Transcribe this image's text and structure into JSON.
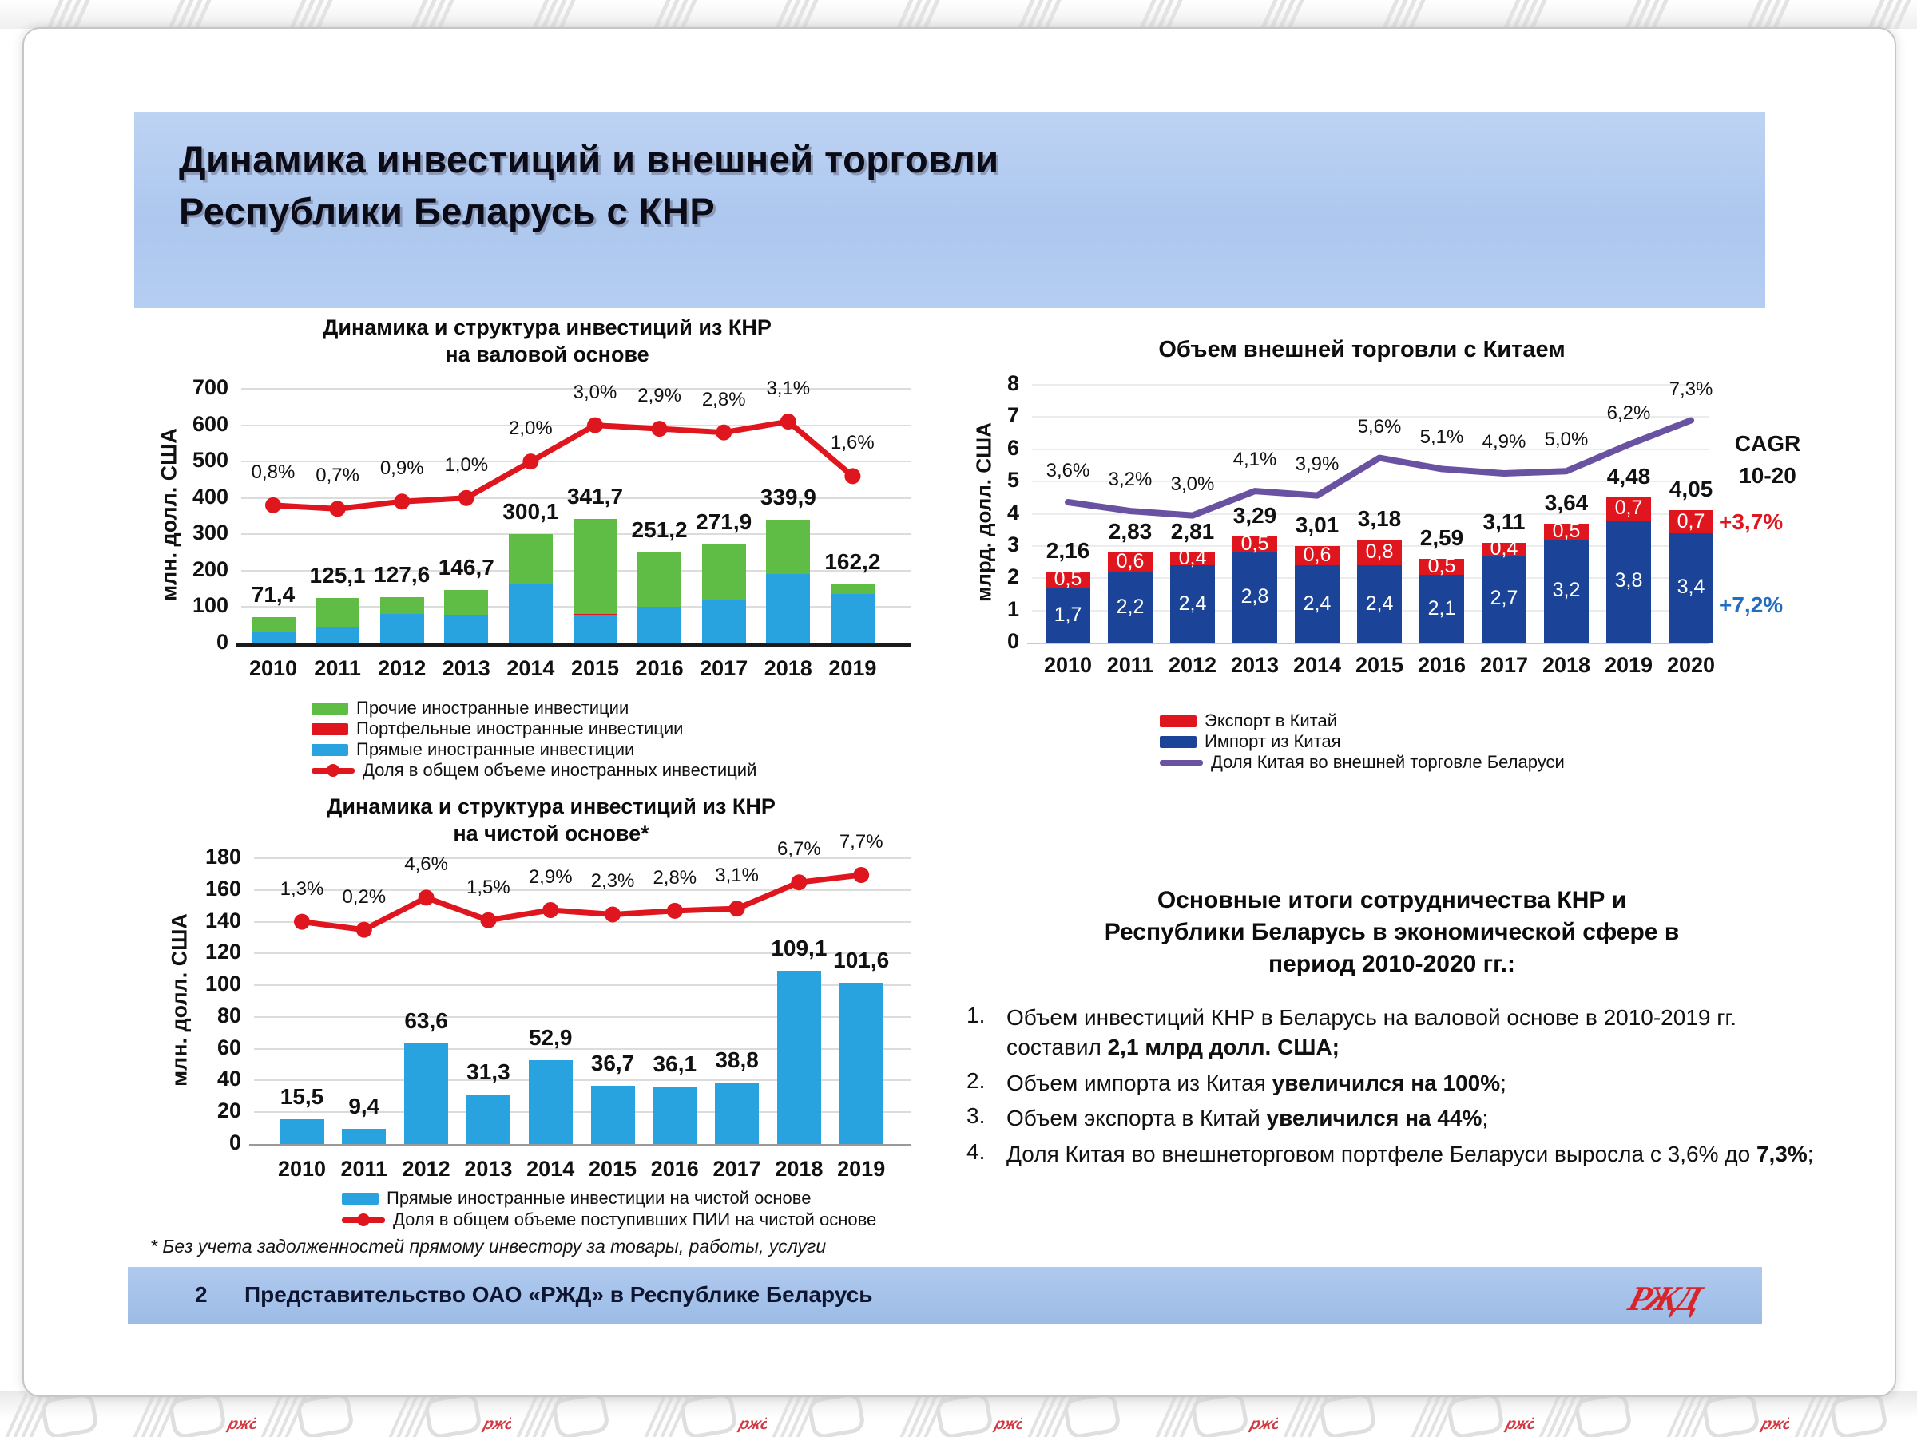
{
  "slide": {
    "title_lines": [
      "Динамика инвестиций и внешней торговли",
      "Республики Беларусь с КНР"
    ]
  },
  "colors": {
    "sky": "#29a3e0",
    "green": "#5fbd46",
    "red": "#e0161f",
    "navy": "#1b4499",
    "purple": "#6a52a3",
    "blue_text": "#1f6ec2",
    "band": "#aec8ef",
    "dark": "#0e1530"
  },
  "chart_data": [
    {
      "id": "invest_gross",
      "type": "stacked-bar-line",
      "title_lines": [
        "Динамика и структура инвестиций из КНР",
        "на валовой основе"
      ],
      "ylabel": "млн. долл. США",
      "ylim": [
        0,
        700
      ],
      "ytick_step": 100,
      "grid": true,
      "categories": [
        "2010",
        "2011",
        "2012",
        "2013",
        "2014",
        "2015",
        "2016",
        "2017",
        "2018",
        "2019"
      ],
      "total_labels": [
        "71,4",
        "125,1",
        "127,6",
        "146,7",
        "300,1",
        "341,7",
        "251,2",
        "271,9",
        "339,9",
        "162,2"
      ],
      "series": [
        {
          "name": "Прямые иностранные инвестиции",
          "color": "sky",
          "values": [
            30,
            45,
            82,
            80,
            165,
            80,
            100,
            120,
            190,
            137
          ]
        },
        {
          "name": "Портфельные иностранные инвестиции",
          "color": "red",
          "values": [
            0,
            0,
            0,
            0,
            0,
            2,
            0,
            0,
            0,
            0
          ]
        },
        {
          "name": "Прочие иностранные инвестиции",
          "color": "green",
          "values": [
            41.4,
            80.1,
            45.6,
            66.7,
            135.1,
            259.7,
            151.2,
            151.9,
            149.9,
            25.2
          ]
        }
      ],
      "line": {
        "name": "Доля в общем объеме иностранных инвестиций",
        "unit": "%",
        "values": [
          0.8,
          0.7,
          0.9,
          1.0,
          2.0,
          3.0,
          2.9,
          2.8,
          3.1,
          1.6
        ],
        "labels": [
          "0,8%",
          "0,7%",
          "0,9%",
          "1,0%",
          "2,0%",
          "3,0%",
          "2,9%",
          "2,8%",
          "3,1%",
          "1,6%"
        ]
      },
      "legend": [
        {
          "swatch": "rect",
          "color": "green",
          "label": "Прочие иностранные инвестиции"
        },
        {
          "swatch": "rect",
          "color": "red",
          "label": "Портфельные иностранные инвестиции"
        },
        {
          "swatch": "rect",
          "color": "sky",
          "label": "Прямые иностранные инвестиции"
        },
        {
          "swatch": "line-dot",
          "color": "red",
          "label": "Доля в общем объеме иностранных инвестиций"
        }
      ]
    },
    {
      "id": "invest_net",
      "type": "bar-line",
      "title_lines": [
        "Динамика и структура инвестиций из КНР",
        "на чистой основе*"
      ],
      "ylabel": "млн. долл. США",
      "ylim": [
        0,
        180
      ],
      "ytick_step": 20,
      "grid": true,
      "categories": [
        "2010",
        "2011",
        "2012",
        "2013",
        "2014",
        "2015",
        "2016",
        "2017",
        "2018",
        "2019"
      ],
      "total_labels": [
        "15,5",
        "9,4",
        "63,6",
        "31,3",
        "52,9",
        "36,7",
        "36,1",
        "38,8",
        "109,1",
        "101,6"
      ],
      "series": [
        {
          "name": "Прямые иностранные инвестиции на чистой основе",
          "color": "sky",
          "values": [
            15.5,
            9.4,
            63.6,
            31.3,
            52.9,
            36.7,
            36.1,
            38.8,
            109.1,
            101.6
          ]
        }
      ],
      "line": {
        "name": "Доля в общем объеме поступивших ПИИ на чистой основе",
        "unit": "%",
        "values": [
          1.3,
          0.2,
          4.6,
          1.5,
          2.9,
          2.3,
          2.8,
          3.1,
          6.7,
          7.7
        ],
        "labels": [
          "1,3%",
          "0,2%",
          "4,6%",
          "1,5%",
          "2,9%",
          "2,3%",
          "2,8%",
          "3,1%",
          "6,7%",
          "7,7%"
        ]
      },
      "legend": [
        {
          "swatch": "rect",
          "color": "sky",
          "label": "Прямые иностранные инвестиции на чистой основе"
        },
        {
          "swatch": "line-dot",
          "color": "red",
          "label": "Доля в общем объеме поступивших ПИИ на чистой основе"
        }
      ],
      "footnote": "* Без учета задолженностей прямому инвестору за товары, работы, услуги"
    },
    {
      "id": "trade",
      "type": "stacked-bar-line",
      "title": "Объем внешней торговли с Китаем",
      "ylabel": "млрд. долл. США",
      "ylim": [
        0,
        8
      ],
      "ytick_step": 1,
      "grid": false,
      "categories": [
        "2010",
        "2011",
        "2012",
        "2013",
        "2014",
        "2015",
        "2016",
        "2017",
        "2018",
        "2019",
        "2020"
      ],
      "total_labels": [
        "2,16",
        "2,83",
        "2,81",
        "3,29",
        "3,01",
        "3,18",
        "2,59",
        "3,11",
        "3,64",
        "4,48",
        "4,05"
      ],
      "series": [
        {
          "name": "Импорт из Китая",
          "color": "navy",
          "values": [
            1.7,
            2.2,
            2.4,
            2.8,
            2.4,
            2.4,
            2.1,
            2.7,
            3.2,
            3.8,
            3.4
          ],
          "value_labels": [
            "1,7",
            "2,2",
            "2,4",
            "2,8",
            "2,4",
            "2,4",
            "2,1",
            "2,7",
            "3,2",
            "3,8",
            "3,4"
          ]
        },
        {
          "name": "Экспорт в Китай",
          "color": "red",
          "values": [
            0.5,
            0.6,
            0.4,
            0.5,
            0.6,
            0.8,
            0.5,
            0.4,
            0.5,
            0.7,
            0.7
          ],
          "value_labels": [
            "0,5",
            "0,6",
            "0,4",
            "0,5",
            "0,6",
            "0,8",
            "0,5",
            "0,4",
            "0,5",
            "0,7",
            "0,7"
          ]
        }
      ],
      "line": {
        "name": "Доля Китая во внешней торговле Беларуси",
        "unit": "%",
        "values": [
          3.6,
          3.2,
          3.0,
          4.1,
          3.9,
          5.6,
          5.1,
          4.9,
          5.0,
          6.2,
          7.3
        ],
        "labels": [
          "3,6%",
          "3,2%",
          "3,0%",
          "4,1%",
          "3,9%",
          "5,6%",
          "5,1%",
          "4,9%",
          "5,0%",
          "6,2%",
          "7,3%"
        ]
      },
      "cagr": {
        "title": "CAGR",
        "period": "10-20",
        "export_label": "+3,7%",
        "import_label": "+7,2%"
      },
      "legend": [
        {
          "swatch": "rect",
          "color": "red",
          "label": "Экспорт в Китай"
        },
        {
          "swatch": "rect",
          "color": "navy",
          "label": "Импорт из Китая"
        },
        {
          "swatch": "line",
          "color": "purple",
          "label": "Доля Китая во внешней торговле Беларуси"
        }
      ]
    }
  ],
  "summary": {
    "heading_lines": [
      "Основные итоги сотрудничества КНР и",
      "Республики Беларусь в экономической сфере в",
      "период 2010-2020 гг.:"
    ],
    "items": [
      {
        "num": "1.",
        "pre": "Объем инвестиций КНР в Беларусь на валовой основе в 2010-2019 гг. составил  ",
        "bold": "2,1 млрд долл. США;",
        "post": ""
      },
      {
        "num": "2.",
        "pre": "Объем импорта из Китая ",
        "bold": "увеличился на 100%",
        "post": ";"
      },
      {
        "num": "3.",
        "pre": "Объем экспорта в Китай ",
        "bold": "увеличился на 44%",
        "post": ";"
      },
      {
        "num": "4.",
        "pre": "Доля Китая во внешнеторговом портфеле Беларуси выросла с 3,6% до ",
        "bold": "7,3%",
        "post": ";"
      }
    ]
  },
  "footer": {
    "page_number": "2",
    "org_text": "Представительство ОАО «РЖД» в Республике Беларусь",
    "logo_text": "РЖД"
  }
}
